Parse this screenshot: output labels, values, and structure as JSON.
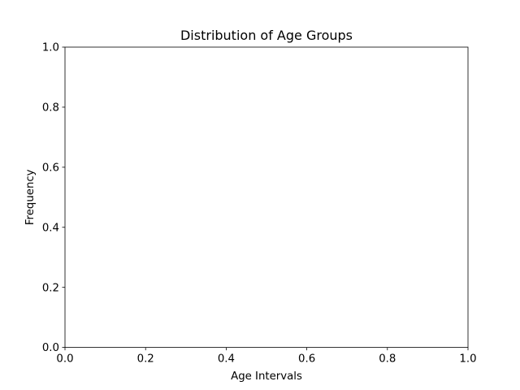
{
  "chart_data": {
    "type": "bar",
    "title": "Distribution of Age Groups",
    "xlabel": "Age Intervals",
    "ylabel": "Frequency",
    "categories": [],
    "values": [],
    "xlim": [
      0.0,
      1.0
    ],
    "ylim": [
      0.0,
      1.0
    ],
    "xticks": [
      "0.0",
      "0.2",
      "0.4",
      "0.6",
      "0.8",
      "1.0"
    ],
    "yticks": [
      "0.0",
      "0.2",
      "0.4",
      "0.6",
      "0.8",
      "1.0"
    ],
    "grid": false,
    "legend": "none"
  },
  "colors": {
    "axis": "#000000",
    "background": "#ffffff"
  }
}
